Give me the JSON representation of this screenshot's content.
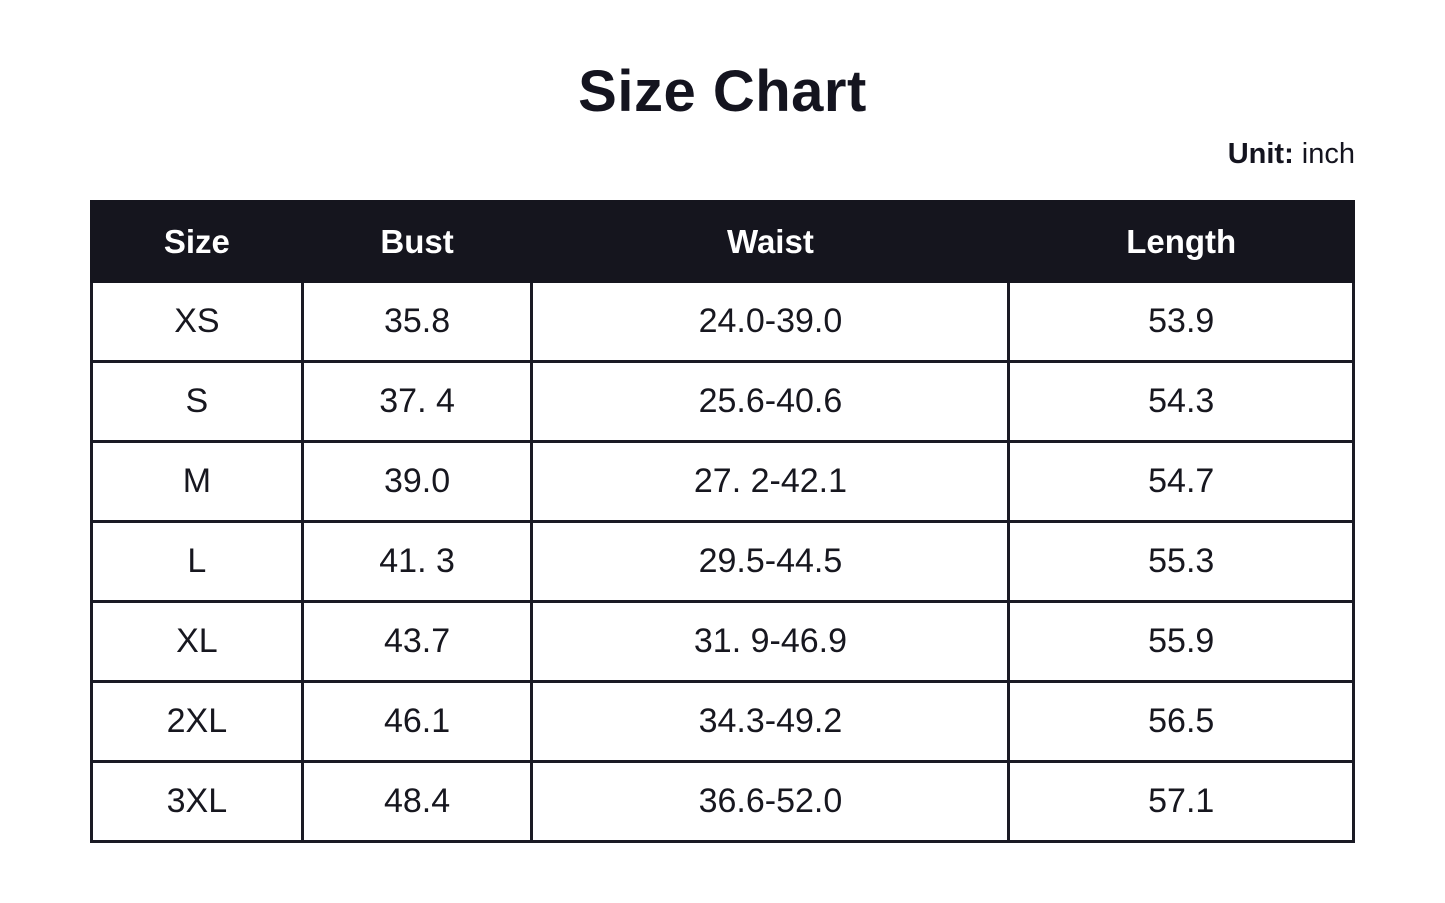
{
  "page": {
    "title": "Size Chart",
    "unit_label": "Unit:",
    "unit_value": " inch"
  },
  "table": {
    "columns": [
      "Size",
      "Bust",
      "Waist",
      "Length"
    ],
    "rows": [
      {
        "size": "XS",
        "bust": "35.8",
        "waist": "24.0-39.0",
        "length": "53.9"
      },
      {
        "size": "S",
        "bust": "37. 4",
        "waist": "25.6-40.6",
        "length": "54.3"
      },
      {
        "size": "M",
        "bust": "39.0",
        "waist": "27. 2-42.1",
        "length": "54.7"
      },
      {
        "size": "L",
        "bust": "41. 3",
        "waist": "29.5-44.5",
        "length": "55.3"
      },
      {
        "size": "XL",
        "bust": "43.7",
        "waist": "31. 9-46.9",
        "length": "55.9"
      },
      {
        "size": "2XL",
        "bust": "46.1",
        "waist": "34.3-49.2",
        "length": "56.5"
      },
      {
        "size": "3XL",
        "bust": "48.4",
        "waist": "36.6-52.0",
        "length": "57.1"
      }
    ]
  },
  "colors": {
    "header_bg": "#15151e",
    "header_text": "#ffffff",
    "border": "#1a1a24",
    "text": "#17171f",
    "background": "#ffffff"
  }
}
